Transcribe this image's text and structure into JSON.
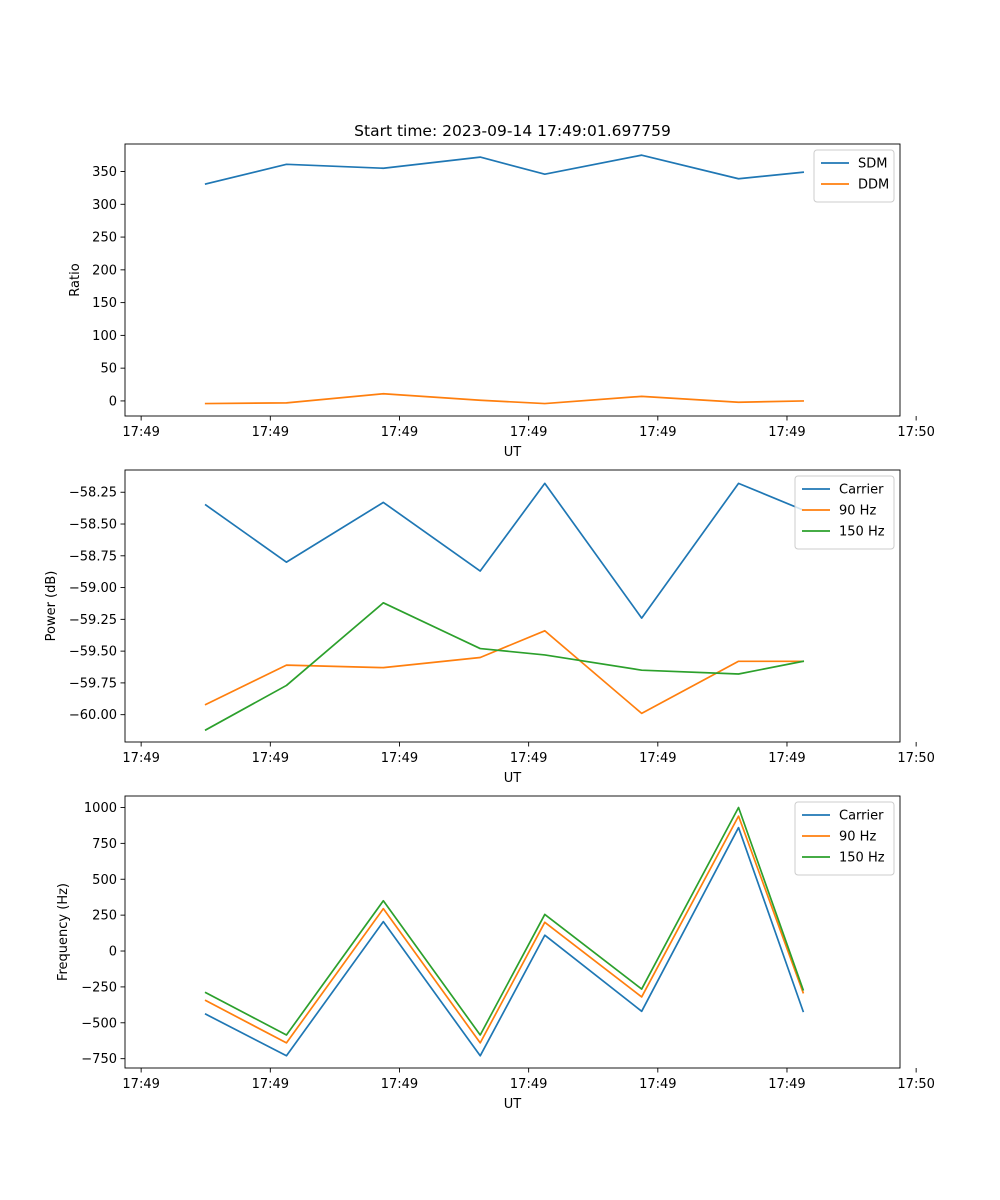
{
  "title": "Start time: 2023-09-14 17:49:01.697759",
  "chart_data": [
    {
      "type": "line",
      "xlabel": "UT",
      "ylabel": "Ratio",
      "xlim": [
        -0.25,
        5.75
      ],
      "ylim": [
        -23,
        392
      ],
      "xticks": [
        {
          "v": -0.125,
          "label": "17:49"
        },
        {
          "v": 0.875,
          "label": "17:49"
        },
        {
          "v": 1.875,
          "label": "17:49"
        },
        {
          "v": 2.875,
          "label": "17:49"
        },
        {
          "v": 3.875,
          "label": "17:49"
        },
        {
          "v": 4.875,
          "label": "17:49"
        },
        {
          "v": 5.875,
          "label": "17:50"
        }
      ],
      "yticks": [
        0,
        50,
        100,
        150,
        200,
        250,
        300,
        350
      ],
      "ytick_labels": [
        "0",
        "50",
        "100",
        "150",
        "200",
        "250",
        "300",
        "350"
      ],
      "x": [
        0.375,
        1.0,
        1.75,
        2.5,
        3.0,
        3.75,
        4.5,
        5.0
      ],
      "series": [
        {
          "name": "SDM",
          "color": "#1f77b4",
          "values": [
            331,
            361,
            355,
            372,
            346,
            375,
            339,
            349
          ]
        },
        {
          "name": "DDM",
          "color": "#ff7f0e",
          "values": [
            -4,
            -3,
            11,
            1,
            -4,
            7,
            -2,
            0
          ]
        }
      ],
      "legend": "top-right"
    },
    {
      "type": "line",
      "xlabel": "UT",
      "ylabel": "Power (dB)",
      "xlim": [
        -0.25,
        5.75
      ],
      "ylim": [
        -60.215,
        -58.075
      ],
      "xticks": [
        {
          "v": -0.125,
          "label": "17:49"
        },
        {
          "v": 0.875,
          "label": "17:49"
        },
        {
          "v": 1.875,
          "label": "17:49"
        },
        {
          "v": 2.875,
          "label": "17:49"
        },
        {
          "v": 3.875,
          "label": "17:49"
        },
        {
          "v": 4.875,
          "label": "17:49"
        },
        {
          "v": 5.875,
          "label": "17:50"
        }
      ],
      "yticks": [
        -60.0,
        -59.75,
        -59.5,
        -59.25,
        -59.0,
        -58.75,
        -58.5,
        -58.25
      ],
      "ytick_labels": [
        "−60.00",
        "−59.75",
        "−59.50",
        "−59.25",
        "−59.00",
        "−58.75",
        "−58.50",
        "−58.25"
      ],
      "x": [
        0.375,
        1.0,
        1.75,
        2.5,
        3.0,
        3.75,
        4.5,
        5.0
      ],
      "series": [
        {
          "name": "Carrier",
          "color": "#1f77b4",
          "values": [
            -58.35,
            -58.8,
            -58.33,
            -58.87,
            -58.18,
            -59.24,
            -58.18,
            -58.39
          ]
        },
        {
          "name": "90 Hz",
          "color": "#ff7f0e",
          "values": [
            -59.92,
            -59.61,
            -59.63,
            -59.55,
            -59.34,
            -59.99,
            -59.58,
            -59.58
          ]
        },
        {
          "name": "150 Hz",
          "color": "#2ca02c",
          "values": [
            -60.12,
            -59.77,
            -59.12,
            -59.48,
            -59.53,
            -59.65,
            -59.68,
            -59.58
          ]
        }
      ],
      "legend": "top-right"
    },
    {
      "type": "line",
      "xlabel": "UT",
      "ylabel": "Frequency (Hz)",
      "xlim": [
        -0.25,
        5.75
      ],
      "ylim": [
        -815,
        1080
      ],
      "xticks": [
        {
          "v": -0.125,
          "label": "17:49"
        },
        {
          "v": 0.875,
          "label": "17:49"
        },
        {
          "v": 1.875,
          "label": "17:49"
        },
        {
          "v": 2.875,
          "label": "17:49"
        },
        {
          "v": 3.875,
          "label": "17:49"
        },
        {
          "v": 4.875,
          "label": "17:49"
        },
        {
          "v": 5.875,
          "label": "17:50"
        }
      ],
      "yticks": [
        -750,
        -500,
        -250,
        0,
        250,
        500,
        750,
        1000
      ],
      "ytick_labels": [
        "−750",
        "−500",
        "−250",
        "0",
        "250",
        "500",
        "750",
        "1000"
      ],
      "x": [
        0.375,
        1.0,
        1.75,
        2.5,
        3.0,
        3.75,
        4.5,
        5.0
      ],
      "series": [
        {
          "name": "Carrier",
          "color": "#1f77b4",
          "values": [
            -440,
            -730,
            205,
            -730,
            110,
            -420,
            860,
            -420
          ]
        },
        {
          "name": "90 Hz",
          "color": "#ff7f0e",
          "values": [
            -345,
            -640,
            295,
            -640,
            200,
            -320,
            940,
            -290
          ]
        },
        {
          "name": "150 Hz",
          "color": "#2ca02c",
          "values": [
            -290,
            -585,
            350,
            -585,
            255,
            -265,
            1000,
            -270
          ]
        }
      ],
      "legend": "top-right"
    }
  ]
}
